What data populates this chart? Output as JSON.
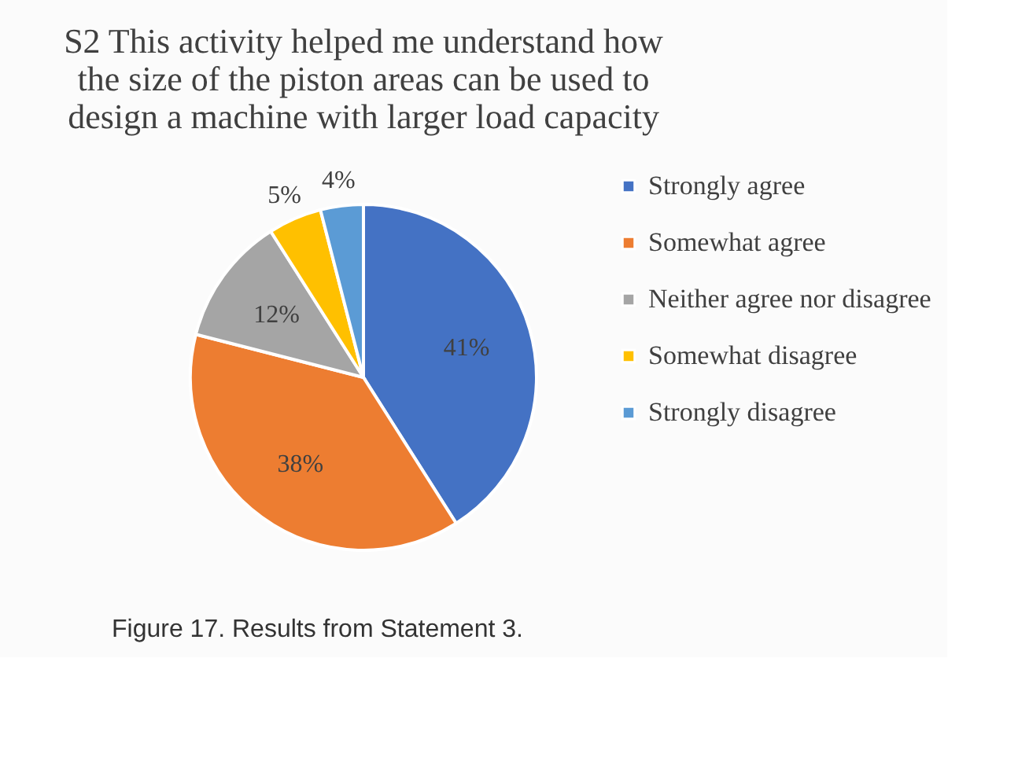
{
  "chart_data": {
    "type": "pie",
    "title": "S2 This activity helped me understand how the size of the piston areas can be used to design a machine with larger load capacity",
    "categories": [
      "Strongly agree",
      "Somewhat agree",
      "Neither agree nor disagree",
      "Somewhat disagree",
      "Strongly disagree"
    ],
    "values": [
      41,
      38,
      12,
      5,
      4
    ],
    "colors": [
      "#4472c4",
      "#ed7d31",
      "#a5a5a5",
      "#ffc000",
      "#5b9bd5"
    ],
    "value_labels": [
      "41%",
      "38%",
      "12%",
      "5%",
      "4%"
    ],
    "legend": "right",
    "annotations": [
      "Figure 17. Results from Statement 3."
    ]
  }
}
